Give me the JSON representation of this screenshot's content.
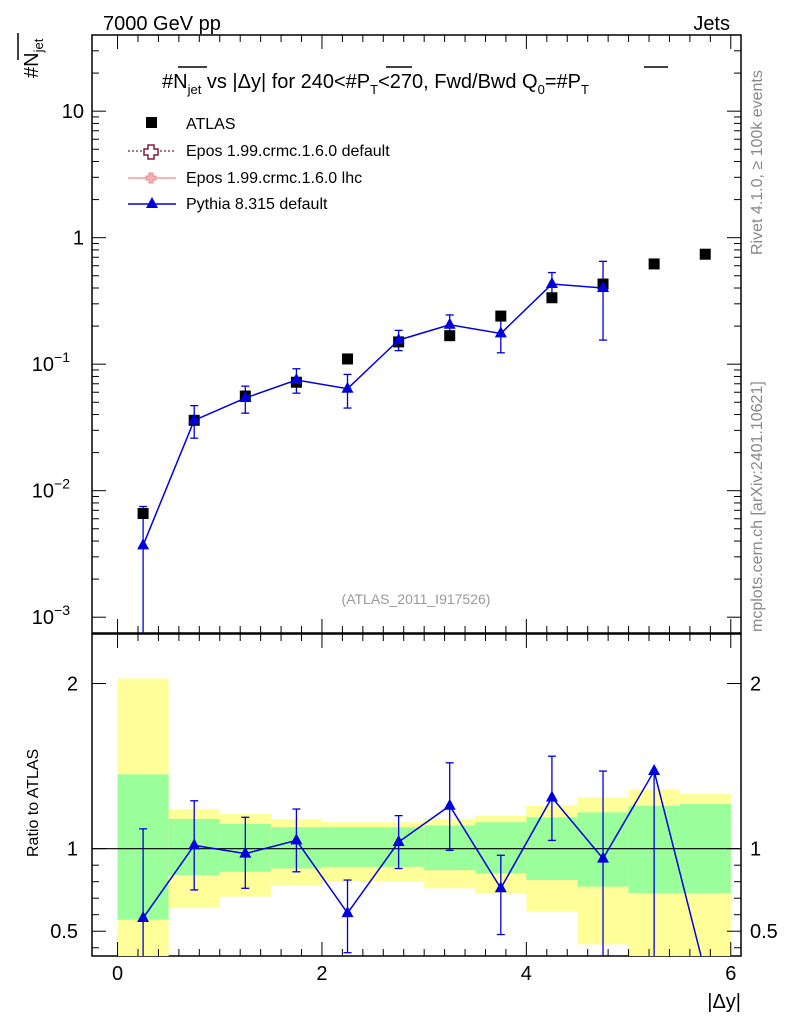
{
  "header": {
    "energy_label": "7000 GeV pp",
    "process_label": "Jets",
    "side_label_top": "Rivet 4.1.0, ≥ 100k events",
    "side_label_bottom": "mcplots.cern.ch [arXiv:2401.10621]",
    "analysis_id": "(ATLAS_2011_I917526)"
  },
  "chart_data": [
    {
      "type": "scatter",
      "panel": "main",
      "title": "#N̅jet vs |Δy| for 240<#P̅T<270, Fwd/Bwd Q0=#P̅T",
      "title_parts": {
        "a": "#N",
        "a_sub": "jet",
        "b": " vs |Δy|  for 240<#P",
        "b_sub": "T",
        "c": "<270, Fwd/Bwd Q",
        "c_sub": "0",
        "d": "=#P",
        "d_sub": "T"
      },
      "ylabel": "#N",
      "ylabel_sub": "jet",
      "xlabel": "|Δy|",
      "yscale": "log",
      "ylim": [
        0.00075,
        40
      ],
      "xlim": [
        -0.25,
        6.1
      ],
      "y_ticks": [
        0.001,
        0.01,
        0.1,
        1,
        10
      ],
      "y_tick_labels": [
        {
          "base": "10",
          "exp": "−3"
        },
        {
          "base": "10",
          "exp": "−2"
        },
        {
          "base": "10",
          "exp": "−1"
        },
        {
          "base": "1",
          "exp": ""
        },
        {
          "base": "10",
          "exp": ""
        }
      ],
      "legend": [
        {
          "name": "ATLAS",
          "marker": "square",
          "color": "#000000"
        },
        {
          "name": "Epos 1.99.crmc.1.6.0 default",
          "marker": "open-cross",
          "color": "#7a1f3d"
        },
        {
          "name": "Epos 1.99.crmc.1.6.0 lhc",
          "marker": "cross",
          "color": "#f08a8a"
        },
        {
          "name": "Pythia 8.315 default",
          "marker": "triangle",
          "color": "#0000dd"
        }
      ],
      "legend_location": "top-left",
      "series": [
        {
          "name": "ATLAS",
          "x": [
            0.25,
            0.75,
            1.25,
            1.75,
            2.25,
            2.75,
            3.25,
            3.75,
            4.25,
            4.75,
            5.25,
            5.75
          ],
          "y": [
            0.0066,
            0.036,
            0.056,
            0.072,
            0.11,
            0.15,
            0.168,
            0.24,
            0.335,
            0.43,
            0.62,
            0.74
          ]
        },
        {
          "name": "Pythia 8.315 default",
          "x": [
            0.25,
            0.75,
            1.25,
            1.75,
            2.25,
            2.75,
            3.25,
            3.75,
            4.25,
            4.75
          ],
          "y": [
            0.0037,
            0.036,
            0.054,
            0.075,
            0.064,
            0.155,
            0.205,
            0.175,
            0.43,
            0.4
          ],
          "y_low": [
            0.0005,
            0.026,
            0.041,
            0.059,
            0.045,
            0.128,
            0.166,
            0.123,
            0.35,
            0.155
          ],
          "y_high": [
            0.0075,
            0.047,
            0.067,
            0.092,
            0.083,
            0.185,
            0.245,
            0.23,
            0.53,
            0.65
          ]
        }
      ]
    },
    {
      "type": "line",
      "panel": "ratio",
      "ylabel": "Ratio to ATLAS",
      "xlabel": "|Δy|",
      "ylim": [
        0.35,
        2.3
      ],
      "xlim": [
        -0.25,
        6.1
      ],
      "x_ticks": [
        0,
        2,
        4,
        6
      ],
      "y_ticks": [
        0.5,
        1,
        2
      ],
      "bin_edges": [
        0,
        0.5,
        1.0,
        1.5,
        2.0,
        2.5,
        3.0,
        3.5,
        4.0,
        4.5,
        5.0,
        5.5,
        6.0
      ],
      "stat_band": {
        "color": "#9aff9a",
        "low": [
          0.57,
          0.84,
          0.86,
          0.88,
          0.89,
          0.89,
          0.87,
          0.85,
          0.81,
          0.77,
          0.73,
          0.73
        ],
        "high": [
          1.45,
          1.18,
          1.15,
          1.13,
          1.13,
          1.13,
          1.14,
          1.16,
          1.19,
          1.22,
          1.26,
          1.27
        ]
      },
      "syst_band": {
        "color": "#ffff99",
        "low": [
          0.35,
          0.64,
          0.71,
          0.78,
          0.8,
          0.8,
          0.76,
          0.73,
          0.62,
          0.42,
          0.35,
          0.35
        ],
        "high": [
          2.03,
          1.24,
          1.21,
          1.18,
          1.16,
          1.16,
          1.18,
          1.2,
          1.26,
          1.31,
          1.36,
          1.33
        ]
      },
      "series": [
        {
          "name": "Pythia 8.315 default",
          "x": [
            0.25,
            0.75,
            1.25,
            1.75,
            2.25,
            2.75,
            3.25,
            3.75,
            4.25,
            4.75,
            5.25
          ],
          "y": [
            0.58,
            1.02,
            0.97,
            1.05,
            0.61,
            1.04,
            1.26,
            0.76,
            1.31,
            0.94,
            1.47
          ],
          "y_low": [
            0.35,
            0.75,
            0.76,
            0.86,
            0.37,
            0.88,
            0.99,
            0.48,
            1.05,
            0.35,
            0.35
          ],
          "y_high": [
            1.12,
            1.29,
            1.19,
            1.24,
            0.81,
            1.2,
            1.52,
            0.96,
            1.56,
            1.47,
            1.47
          ],
          "tail_x": 5.75,
          "tail_y": 0.25
        }
      ],
      "reference_line": 1
    }
  ]
}
